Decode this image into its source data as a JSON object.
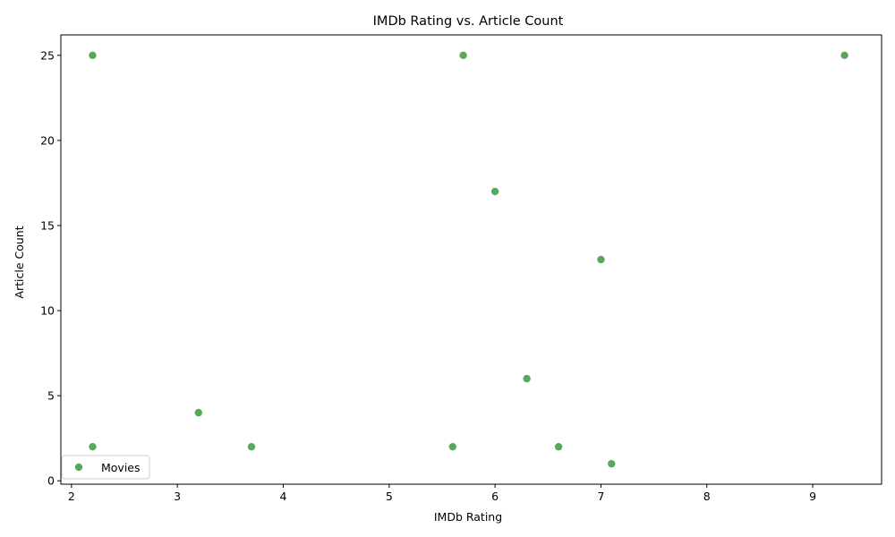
{
  "chart_data": {
    "type": "scatter",
    "title": "IMDb Rating vs. Article Count",
    "xlabel": "IMDb Rating",
    "ylabel": "Article Count",
    "xlim": [
      1.9,
      9.65
    ],
    "ylim": [
      -0.2,
      26.2
    ],
    "xticks": [
      2,
      3,
      4,
      5,
      6,
      7,
      8,
      9
    ],
    "yticks": [
      0,
      5,
      10,
      15,
      20,
      25
    ],
    "grid": false,
    "legend": {
      "placement": "lower-left"
    },
    "series": [
      {
        "name": "Movies",
        "color": "#228b22",
        "points": [
          {
            "x": 2.2,
            "y": 25
          },
          {
            "x": 5.7,
            "y": 25
          },
          {
            "x": 9.3,
            "y": 25
          },
          {
            "x": 6.0,
            "y": 17
          },
          {
            "x": 7.0,
            "y": 13
          },
          {
            "x": 6.3,
            "y": 6
          },
          {
            "x": 3.2,
            "y": 4
          },
          {
            "x": 2.2,
            "y": 2
          },
          {
            "x": 3.7,
            "y": 2
          },
          {
            "x": 5.6,
            "y": 2
          },
          {
            "x": 6.6,
            "y": 2
          },
          {
            "x": 7.1,
            "y": 1
          }
        ]
      }
    ]
  }
}
